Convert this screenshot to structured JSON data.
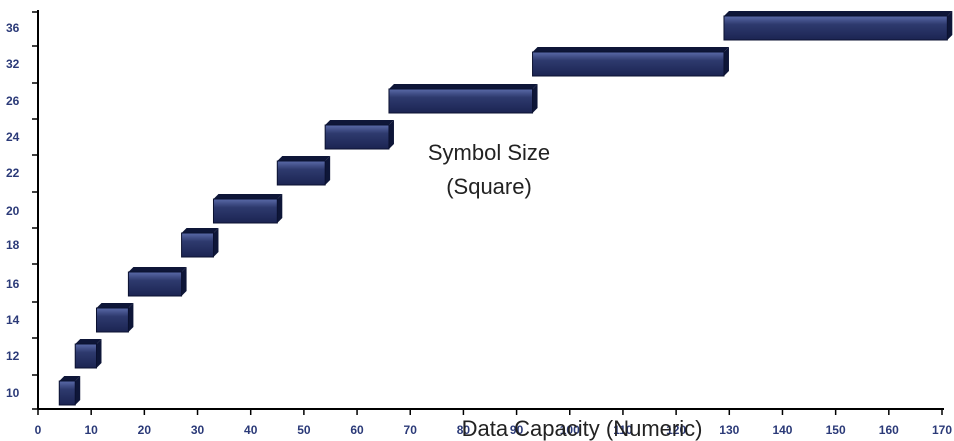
{
  "chart_data": {
    "type": "bar",
    "orientation": "horizontal-floating",
    "title": "",
    "xlabel": "Data Capacity (Numeric)",
    "ylabel": "",
    "xlim": [
      0,
      170
    ],
    "x_ticks": [
      0,
      10,
      20,
      30,
      40,
      50,
      60,
      70,
      80,
      90,
      100,
      110,
      120,
      130,
      140,
      150,
      160,
      170
    ],
    "y_categories": [
      "10",
      "12",
      "14",
      "16",
      "18",
      "20",
      "22",
      "24",
      "26",
      "32",
      "36"
    ],
    "bars": [
      {
        "category": "10",
        "start": 4,
        "end": 7
      },
      {
        "category": "12",
        "start": 7,
        "end": 11
      },
      {
        "category": "14",
        "start": 11,
        "end": 17
      },
      {
        "category": "16",
        "start": 17,
        "end": 27
      },
      {
        "category": "18",
        "start": 27,
        "end": 33
      },
      {
        "category": "20",
        "start": 33,
        "end": 45
      },
      {
        "category": "22",
        "start": 45,
        "end": 54
      },
      {
        "category": "24",
        "start": 54,
        "end": 66
      },
      {
        "category": "26",
        "start": 66,
        "end": 93
      },
      {
        "category": "32",
        "start": 93,
        "end": 129
      },
      {
        "category": "36",
        "start": 129,
        "end": 171
      }
    ],
    "annotation": [
      "Symbol Size",
      "(Square)"
    ],
    "grid": false,
    "legend": "none",
    "colors": {
      "bar": "#2e3a6e",
      "bar_highlight": "#5a6aa8",
      "bar_side": "#0e1638",
      "tick_label": "#2b3a78",
      "axis": "#000000"
    }
  }
}
